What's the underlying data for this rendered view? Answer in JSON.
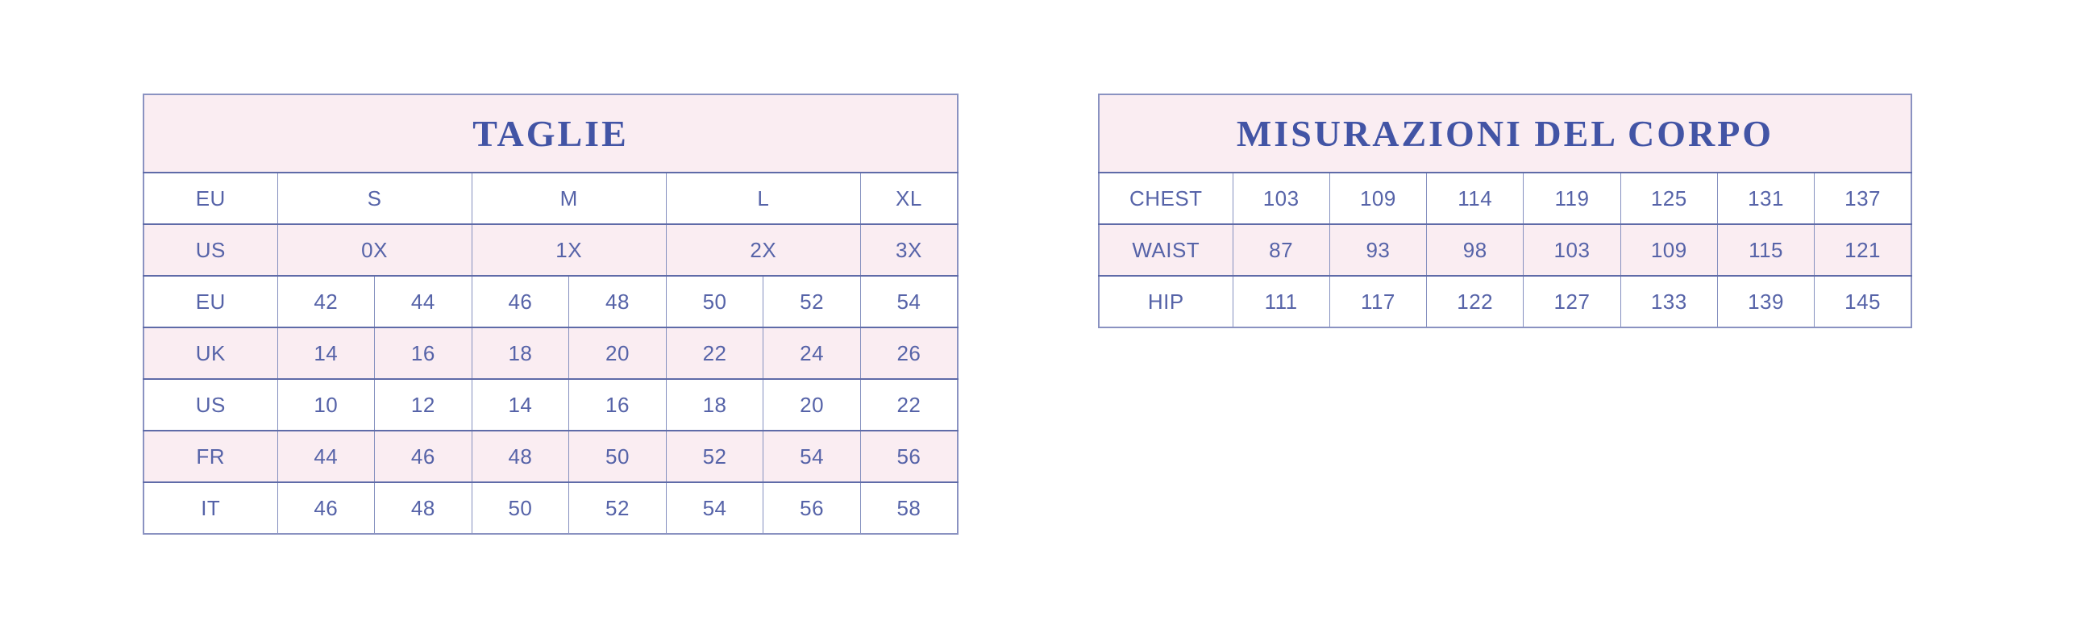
{
  "colors": {
    "page_bg": "#ffffff",
    "pink": "#faedf2",
    "white": "#ffffff",
    "text": "#5663a8",
    "title_text": "#4254a5",
    "border_outer": "#8a92c1",
    "border_vertical": "#8590bf",
    "border_horizontal": "#5f6ba8"
  },
  "chart_data": [
    {
      "type": "table",
      "title": "TAGLIE",
      "rows": [
        {
          "label": "EU",
          "cells": [
            {
              "text": "S",
              "span": 2
            },
            {
              "text": "M",
              "span": 2
            },
            {
              "text": "L",
              "span": 2
            },
            {
              "text": "XL",
              "span": 1
            }
          ]
        },
        {
          "label": "US",
          "cells": [
            {
              "text": "0X",
              "span": 2
            },
            {
              "text": "1X",
              "span": 2
            },
            {
              "text": "2X",
              "span": 2
            },
            {
              "text": "3X",
              "span": 1
            }
          ]
        },
        {
          "label": "EU",
          "cells": [
            "42",
            "44",
            "46",
            "48",
            "50",
            "52",
            "54"
          ]
        },
        {
          "label": "UK",
          "cells": [
            "14",
            "16",
            "18",
            "20",
            "22",
            "24",
            "26"
          ]
        },
        {
          "label": "US",
          "cells": [
            "10",
            "12",
            "14",
            "16",
            "18",
            "20",
            "22"
          ]
        },
        {
          "label": "FR",
          "cells": [
            "44",
            "46",
            "48",
            "50",
            "52",
            "54",
            "56"
          ]
        },
        {
          "label": "IT",
          "cells": [
            "46",
            "48",
            "50",
            "52",
            "54",
            "56",
            "58"
          ]
        }
      ]
    },
    {
      "type": "table",
      "title": "MISURAZIONI DEL CORPO",
      "rows": [
        {
          "label": "CHEST",
          "cells": [
            "103",
            "109",
            "114",
            "119",
            "125",
            "131",
            "137"
          ]
        },
        {
          "label": "WAIST",
          "cells": [
            "87",
            "93",
            "98",
            "103",
            "109",
            "115",
            "121"
          ]
        },
        {
          "label": "HIP",
          "cells": [
            "111",
            "117",
            "122",
            "127",
            "133",
            "139",
            "145"
          ]
        }
      ]
    }
  ]
}
